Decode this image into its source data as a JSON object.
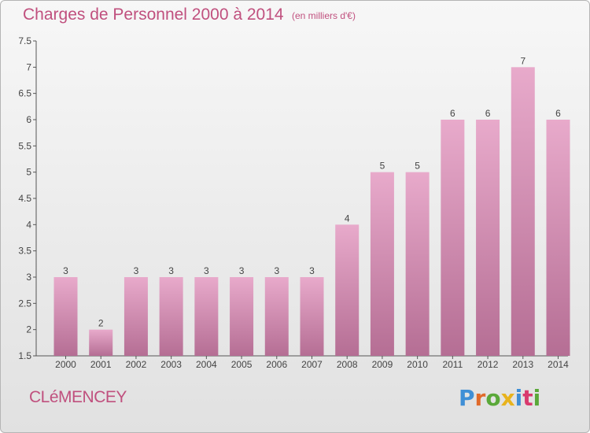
{
  "header": {
    "title": "Charges de Personnel 2000 à 2014",
    "subtitle": "(en milliers d'€)"
  },
  "footer": {
    "commune": "CLéMENCEY",
    "logo_text": "Proxiti",
    "logo_colors": [
      "#3f8fd6",
      "#e06a2a",
      "#5aa839",
      "#e8b31e",
      "#3f8fd6",
      "#d93a6e",
      "#5aa839"
    ]
  },
  "colors": {
    "bar_top": "#e8aacb",
    "bar_bottom": "#b56e94",
    "text": "#c0507e"
  },
  "chart_data": {
    "type": "bar",
    "categories": [
      "2000",
      "2001",
      "2002",
      "2003",
      "2004",
      "2005",
      "2006",
      "2007",
      "2008",
      "2009",
      "2010",
      "2011",
      "2012",
      "2013",
      "2014"
    ],
    "values": [
      3,
      2,
      3,
      3,
      3,
      3,
      3,
      3,
      4,
      5,
      5,
      6,
      6,
      7,
      6
    ],
    "data_labels": [
      "3",
      "2",
      "3",
      "3",
      "3",
      "3",
      "3",
      "3",
      "4",
      "5",
      "5",
      "6",
      "6",
      "7",
      "6"
    ],
    "title": "Charges de Personnel 2000 à 2014",
    "ylim": [
      1.5,
      7.5
    ],
    "yticks": [
      1.5,
      2,
      2.5,
      3,
      3.5,
      4,
      4.5,
      5,
      5.5,
      6,
      6.5,
      7,
      7.5
    ],
    "ytick_labels": [
      "1.5",
      "2",
      "2.5",
      "3",
      "3.5",
      "4",
      "4.5",
      "5",
      "5.5",
      "6",
      "6.5",
      "7",
      "7.5"
    ],
    "grid": false,
    "legend": "none"
  }
}
